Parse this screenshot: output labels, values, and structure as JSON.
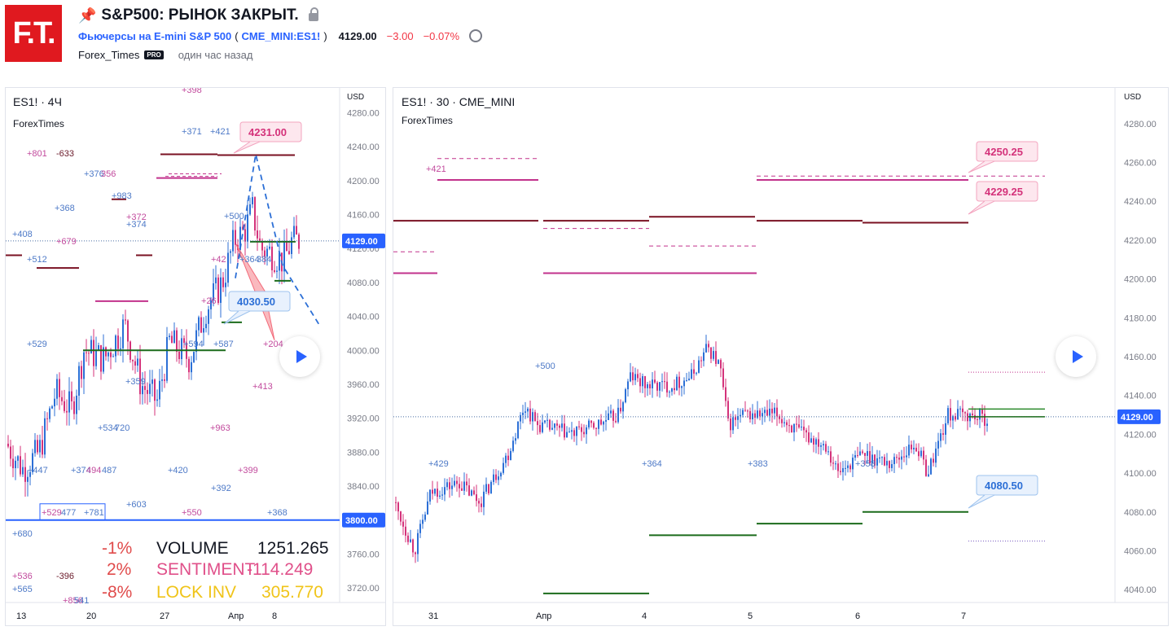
{
  "header": {
    "logo_text": "F.T.",
    "title": "S&P500: РЫНОК ЗАКРЫТ.",
    "pin_icon": "pin-icon",
    "lock_icon": "lock-icon",
    "instrument": "Фьючерсы на E-mini S&P 500",
    "symbol_open": "(",
    "symbol": "CME_MINI:ES1!",
    "symbol_close": ")",
    "price": "4129.00",
    "change": "−3.00",
    "change_pct": "−0.07%",
    "alarm_icon": "alarm-clock-icon",
    "author": "Forex_Times",
    "badge": "PRO",
    "published": "один час назад",
    "accent": "#2962ff",
    "negative": "#f23645"
  },
  "left_chart": {
    "symbol_label": "ES1! · 4Ч",
    "watermark": "ForexTimes",
    "currency": "USD",
    "y_ticks": [
      "4280.00",
      "4240.00",
      "4200.00",
      "4160.00",
      "4120.00",
      "4080.00",
      "4040.00",
      "4000.00",
      "3960.00",
      "3920.00",
      "3880.00",
      "3840.00",
      "3800.00",
      "3760.00",
      "3720.00"
    ],
    "y_range": [
      3700,
      4290
    ],
    "x_ticks": [
      "13",
      "20",
      "27",
      "Апр",
      "8"
    ],
    "price_tag": "4129.00",
    "level_tag": "3800.00",
    "callout_high": "4231.00",
    "callout_low": "4030.50",
    "volume_labels": [
      "+398",
      "+371",
      "+421",
      "+801",
      "-633",
      "+376",
      "356",
      "+983",
      "+368",
      "+372",
      "+374",
      "+408",
      "+679",
      "+512",
      "+500",
      "+42",
      "+364",
      "384",
      "+26",
      "+594",
      "+587",
      "+204",
      "+529",
      "+359",
      "+413",
      "+534",
      "720",
      "+963",
      "+447",
      "+374",
      "494",
      "487",
      "+420",
      "+399",
      "+392",
      "+603",
      "+529",
      "477",
      "+781",
      "+550",
      "+368",
      "+680",
      "+536",
      "-396",
      "+565",
      "+856",
      "541"
    ],
    "play_icon": "play-icon",
    "overlay": {
      "rows": [
        {
          "pct": "-1%",
          "name": "VOLUME",
          "value": "1251.265",
          "color": "#131722"
        },
        {
          "pct": "2%",
          "name": "SENTIMENT",
          "value": "-114.249",
          "color": "#e0508a"
        },
        {
          "pct": "-8%",
          "name": "LOCK INV",
          "value": "305.770",
          "color": "#f0c419"
        }
      ],
      "pct_color": "#e04b4b"
    }
  },
  "right_chart": {
    "symbol_label": "ES1! · 30 · CME_MINI",
    "watermark": "ForexTimes",
    "currency": "USD",
    "y_ticks": [
      "4280.00",
      "4260.00",
      "4240.00",
      "4220.00",
      "4200.00",
      "4180.00",
      "4160.00",
      "4140.00",
      "4120.00",
      "4100.00",
      "4080.00",
      "4060.00",
      "4040.00"
    ],
    "y_range": [
      4030,
      4290
    ],
    "x_ticks": [
      "31",
      "Апр",
      "4",
      "5",
      "6",
      "7"
    ],
    "price_tag": "4129.00",
    "callout_high1": "4250.25",
    "callout_high2": "4229.25",
    "callout_low": "4080.50",
    "volume_labels": [
      "+421",
      "+500",
      "+429",
      "+364",
      "+383",
      "+358"
    ],
    "play_icon": "play-icon"
  }
}
